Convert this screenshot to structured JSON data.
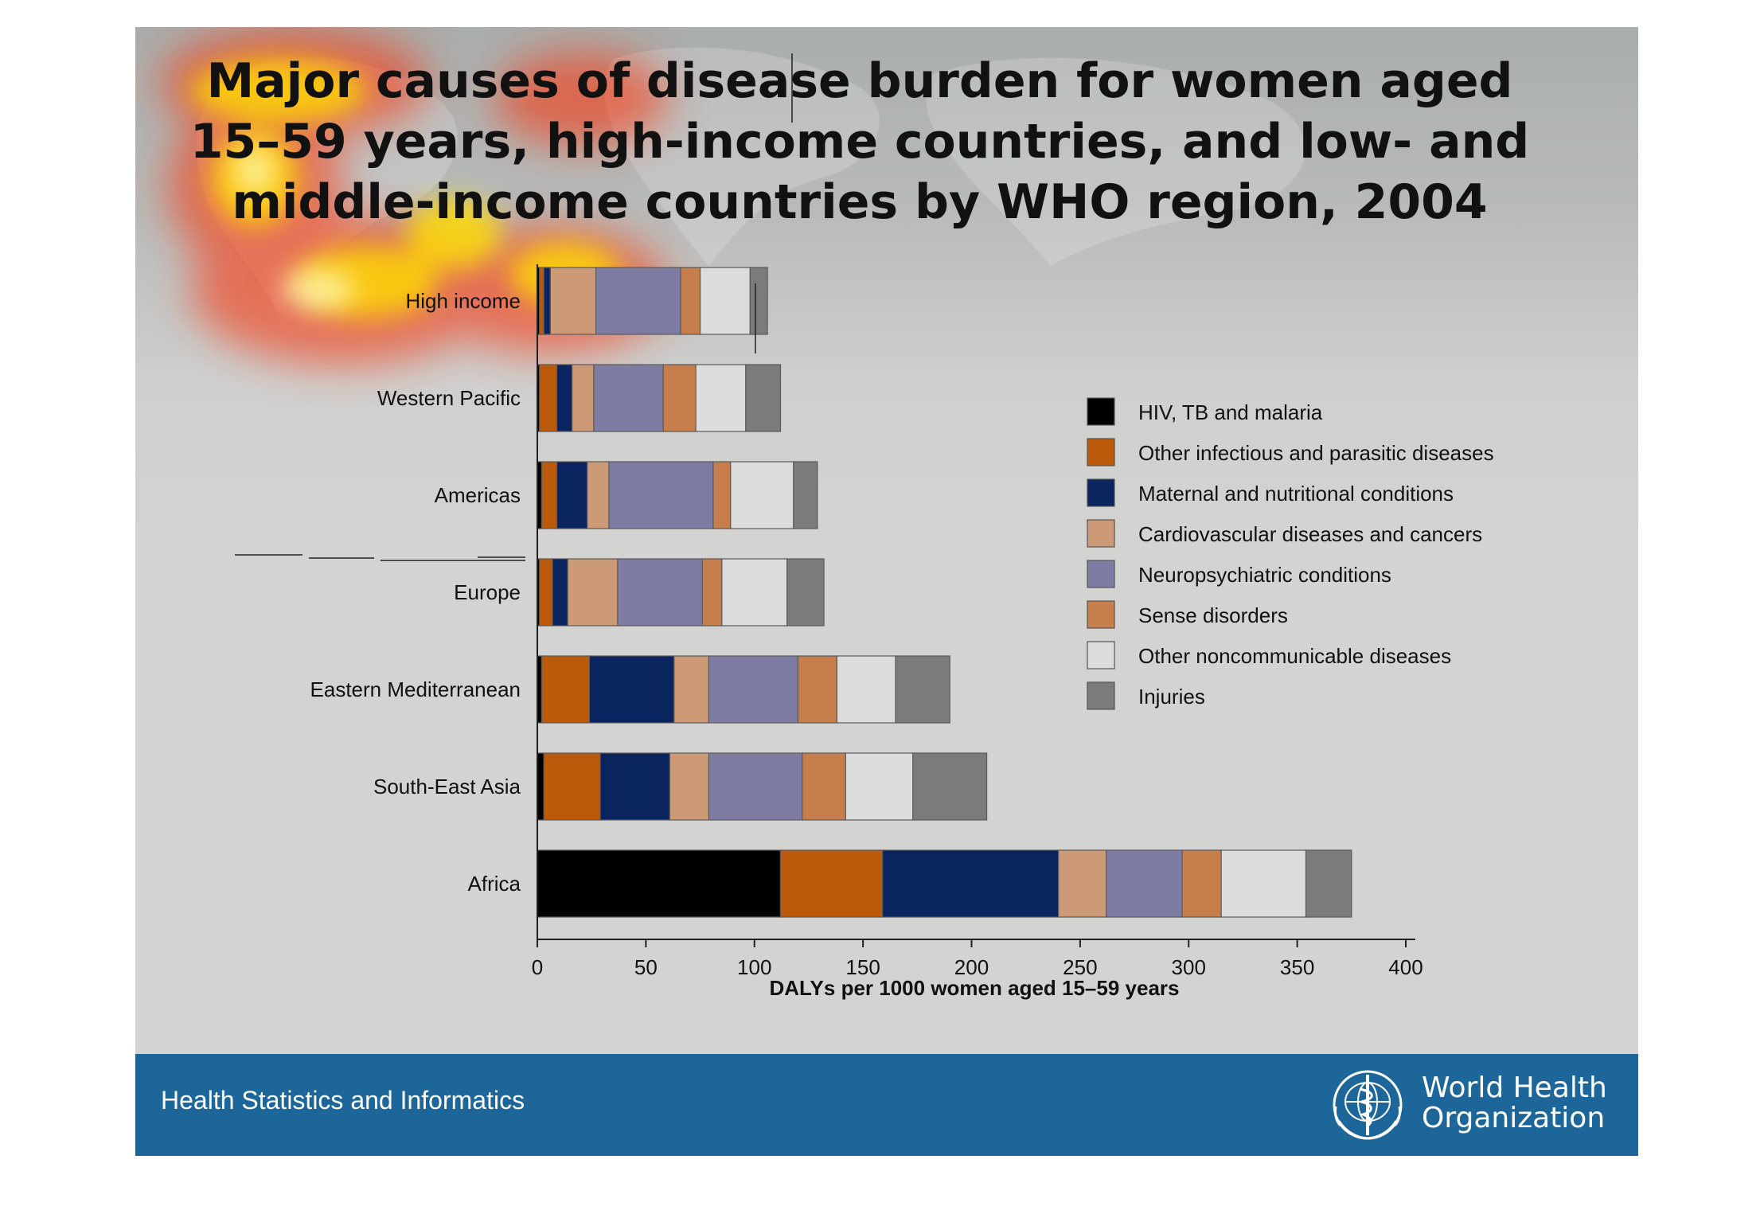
{
  "title": "Major causes of disease burden for women aged 15–59 years, high-income countries, and low- and middle-income countries by WHO region, 2004",
  "footer": {
    "left_text": "Health Statistics and Informatics",
    "org_line1": "World Health",
    "org_line2": "Organization",
    "logo_icon": "who-emblem-icon"
  },
  "colors": {
    "slide_background": "#d3d3d1",
    "footer_background": "#1d6699",
    "series": [
      "#000000",
      "#bc5a0c",
      "#0a2460",
      "#cd9a78",
      "#7e7ca3",
      "#c57e4c",
      "#dcdcdc",
      "#7b7b7b"
    ]
  },
  "chart_data": {
    "type": "bar",
    "orientation": "horizontal",
    "stacked": true,
    "categories": [
      "High income",
      "Western Pacific",
      "Americas",
      "Europe",
      "Eastern Mediterranean",
      "South-East Asia",
      "Africa"
    ],
    "series": [
      {
        "name": "HIV, TB and malaria",
        "values": [
          1,
          1,
          2,
          1,
          2,
          3,
          112
        ]
      },
      {
        "name": "Other infectious and parasitic diseases",
        "values": [
          2,
          8,
          7,
          6,
          22,
          26,
          47
        ]
      },
      {
        "name": "Maternal and nutritional conditions",
        "values": [
          3,
          7,
          14,
          7,
          39,
          32,
          81
        ]
      },
      {
        "name": "Cardiovascular diseases and cancers",
        "values": [
          21,
          10,
          10,
          23,
          16,
          18,
          22
        ]
      },
      {
        "name": "Neuropsychiatric conditions",
        "values": [
          39,
          32,
          48,
          39,
          41,
          43,
          35
        ]
      },
      {
        "name": "Sense disorders",
        "values": [
          9,
          15,
          8,
          9,
          18,
          20,
          18
        ]
      },
      {
        "name": "Other noncommunicable diseases",
        "values": [
          23,
          23,
          29,
          30,
          27,
          31,
          39
        ]
      },
      {
        "name": "Injuries",
        "values": [
          8,
          16,
          11,
          17,
          25,
          34,
          21
        ]
      }
    ],
    "xlabel": "DALYs per 1000 women aged 15–59 years",
    "xlim": [
      0,
      400
    ],
    "xticks": [
      "0",
      "50",
      "100",
      "150",
      "200",
      "250",
      "300",
      "350",
      "400"
    ],
    "legend_position": "right",
    "grid": false
  }
}
